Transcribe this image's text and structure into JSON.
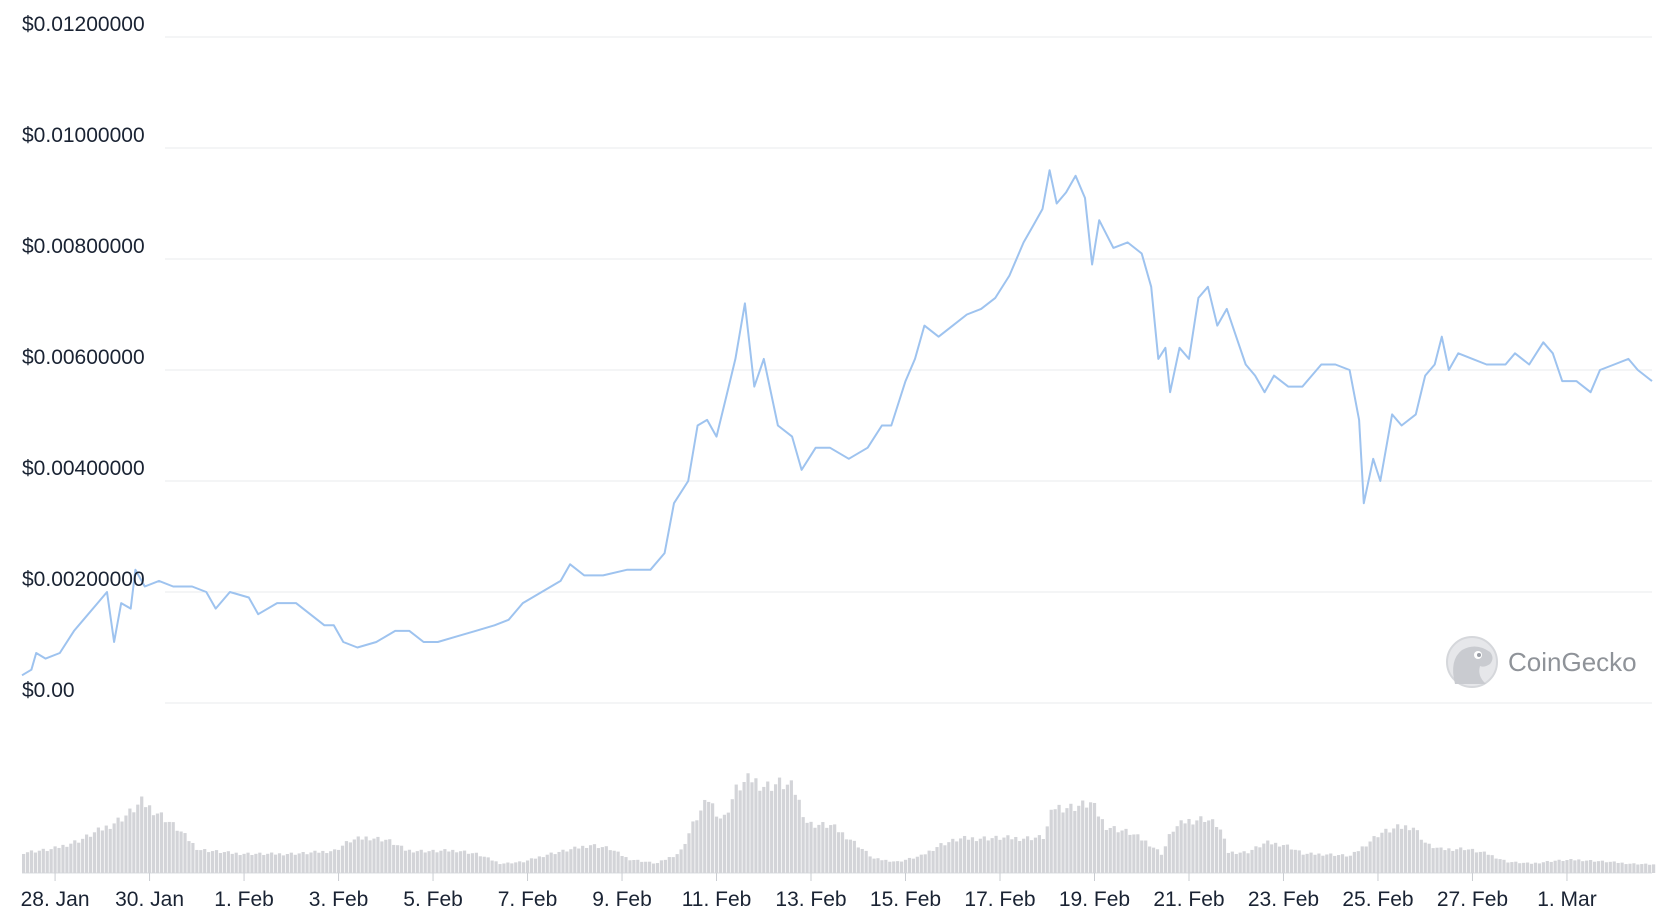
{
  "watermark": {
    "brand": "CoinGecko",
    "icon": "gecko-logo-icon"
  },
  "colors": {
    "line": "#9ec3ef",
    "volume": "#d3d4d8",
    "grid": "#e9ebee",
    "text": "#1a2333"
  },
  "chart_data": {
    "type": "line",
    "title": "",
    "xlabel": "",
    "ylabel": "",
    "ylim": [
      0,
      0.012
    ],
    "grid": true,
    "legend": "none",
    "x_range_days": [
      -0.2,
      34.3
    ],
    "y_ticks": [
      {
        "value": 0,
        "label": "$0.00"
      },
      {
        "value": 0.002,
        "label": "$0.00200000"
      },
      {
        "value": 0.004,
        "label": "$0.00400000"
      },
      {
        "value": 0.006,
        "label": "$0.00600000"
      },
      {
        "value": 0.008,
        "label": "$0.00800000"
      },
      {
        "value": 0.01,
        "label": "$0.01000000"
      },
      {
        "value": 0.012,
        "label": "$0.01200000"
      }
    ],
    "x_ticks": [
      {
        "day": 0.5,
        "label": "28. Jan"
      },
      {
        "day": 2.5,
        "label": "30. Jan"
      },
      {
        "day": 4.5,
        "label": "1. Feb"
      },
      {
        "day": 6.5,
        "label": "3. Feb"
      },
      {
        "day": 8.5,
        "label": "5. Feb"
      },
      {
        "day": 10.5,
        "label": "7. Feb"
      },
      {
        "day": 12.5,
        "label": "9. Feb"
      },
      {
        "day": 14.5,
        "label": "11. Feb"
      },
      {
        "day": 16.5,
        "label": "13. Feb"
      },
      {
        "day": 18.5,
        "label": "15. Feb"
      },
      {
        "day": 20.5,
        "label": "17. Feb"
      },
      {
        "day": 22.5,
        "label": "19. Feb"
      },
      {
        "day": 24.5,
        "label": "21. Feb"
      },
      {
        "day": 26.5,
        "label": "23. Feb"
      },
      {
        "day": 28.5,
        "label": "25. Feb"
      },
      {
        "day": 30.5,
        "label": "27. Feb"
      },
      {
        "day": 32.5,
        "label": "1. Mar"
      }
    ],
    "series": [
      {
        "name": "",
        "points": [
          [
            -0.2,
            0.0005
          ],
          [
            0.0,
            0.0006
          ],
          [
            0.1,
            0.0009
          ],
          [
            0.3,
            0.0008
          ],
          [
            0.6,
            0.0009
          ],
          [
            0.9,
            0.0013
          ],
          [
            1.1,
            0.0015
          ],
          [
            1.4,
            0.0018
          ],
          [
            1.6,
            0.002
          ],
          [
            1.75,
            0.0011
          ],
          [
            1.9,
            0.0018
          ],
          [
            2.1,
            0.0017
          ],
          [
            2.2,
            0.0024
          ],
          [
            2.4,
            0.0021
          ],
          [
            2.7,
            0.0022
          ],
          [
            3.0,
            0.0021
          ],
          [
            3.4,
            0.0021
          ],
          [
            3.7,
            0.002
          ],
          [
            3.9,
            0.0017
          ],
          [
            4.2,
            0.002
          ],
          [
            4.6,
            0.0019
          ],
          [
            4.8,
            0.0016
          ],
          [
            5.2,
            0.0018
          ],
          [
            5.6,
            0.0018
          ],
          [
            5.9,
            0.0016
          ],
          [
            6.2,
            0.0014
          ],
          [
            6.4,
            0.0014
          ],
          [
            6.6,
            0.0011
          ],
          [
            6.9,
            0.001
          ],
          [
            7.3,
            0.0011
          ],
          [
            7.7,
            0.0013
          ],
          [
            8.0,
            0.0013
          ],
          [
            8.3,
            0.0011
          ],
          [
            8.6,
            0.0011
          ],
          [
            9.0,
            0.0012
          ],
          [
            9.4,
            0.0013
          ],
          [
            9.8,
            0.0014
          ],
          [
            10.1,
            0.0015
          ],
          [
            10.4,
            0.0018
          ],
          [
            10.8,
            0.002
          ],
          [
            11.2,
            0.0022
          ],
          [
            11.4,
            0.0025
          ],
          [
            11.7,
            0.0023
          ],
          [
            12.1,
            0.0023
          ],
          [
            12.6,
            0.0024
          ],
          [
            13.1,
            0.0024
          ],
          [
            13.4,
            0.0027
          ],
          [
            13.6,
            0.0036
          ],
          [
            13.9,
            0.004
          ],
          [
            14.1,
            0.005
          ],
          [
            14.3,
            0.0051
          ],
          [
            14.5,
            0.0048
          ],
          [
            14.7,
            0.0055
          ],
          [
            14.9,
            0.0062
          ],
          [
            15.1,
            0.0072
          ],
          [
            15.3,
            0.0057
          ],
          [
            15.5,
            0.0062
          ],
          [
            15.8,
            0.005
          ],
          [
            16.1,
            0.0048
          ],
          [
            16.3,
            0.0042
          ],
          [
            16.6,
            0.0046
          ],
          [
            16.9,
            0.0046
          ],
          [
            17.3,
            0.0044
          ],
          [
            17.7,
            0.0046
          ],
          [
            18.0,
            0.005
          ],
          [
            18.2,
            0.005
          ],
          [
            18.5,
            0.0058
          ],
          [
            18.7,
            0.0062
          ],
          [
            18.9,
            0.0068
          ],
          [
            19.2,
            0.0066
          ],
          [
            19.5,
            0.0068
          ],
          [
            19.8,
            0.007
          ],
          [
            20.1,
            0.0071
          ],
          [
            20.4,
            0.0073
          ],
          [
            20.7,
            0.0077
          ],
          [
            21.0,
            0.0083
          ],
          [
            21.2,
            0.0086
          ],
          [
            21.4,
            0.0089
          ],
          [
            21.55,
            0.0096
          ],
          [
            21.7,
            0.009
          ],
          [
            21.9,
            0.0092
          ],
          [
            22.1,
            0.0095
          ],
          [
            22.3,
            0.0091
          ],
          [
            22.45,
            0.0079
          ],
          [
            22.6,
            0.0087
          ],
          [
            22.9,
            0.0082
          ],
          [
            23.2,
            0.0083
          ],
          [
            23.5,
            0.0081
          ],
          [
            23.7,
            0.0075
          ],
          [
            23.85,
            0.0062
          ],
          [
            24.0,
            0.0064
          ],
          [
            24.1,
            0.0056
          ],
          [
            24.3,
            0.0064
          ],
          [
            24.5,
            0.0062
          ],
          [
            24.7,
            0.0073
          ],
          [
            24.9,
            0.0075
          ],
          [
            25.1,
            0.0068
          ],
          [
            25.3,
            0.0071
          ],
          [
            25.5,
            0.0066
          ],
          [
            25.7,
            0.0061
          ],
          [
            25.9,
            0.0059
          ],
          [
            26.1,
            0.0056
          ],
          [
            26.3,
            0.0059
          ],
          [
            26.6,
            0.0057
          ],
          [
            26.9,
            0.0057
          ],
          [
            27.1,
            0.0059
          ],
          [
            27.3,
            0.0061
          ],
          [
            27.6,
            0.0061
          ],
          [
            27.9,
            0.006
          ],
          [
            28.1,
            0.0051
          ],
          [
            28.2,
            0.0036
          ],
          [
            28.4,
            0.0044
          ],
          [
            28.55,
            0.004
          ],
          [
            28.8,
            0.0052
          ],
          [
            29.0,
            0.005
          ],
          [
            29.3,
            0.0052
          ],
          [
            29.5,
            0.0059
          ],
          [
            29.7,
            0.0061
          ],
          [
            29.85,
            0.0066
          ],
          [
            30.0,
            0.006
          ],
          [
            30.2,
            0.0063
          ],
          [
            30.5,
            0.0062
          ],
          [
            30.8,
            0.0061
          ],
          [
            31.2,
            0.0061
          ],
          [
            31.4,
            0.0063
          ],
          [
            31.7,
            0.0061
          ],
          [
            32.0,
            0.0065
          ],
          [
            32.2,
            0.0063
          ],
          [
            32.4,
            0.0058
          ],
          [
            32.7,
            0.0058
          ],
          [
            33.0,
            0.0056
          ],
          [
            33.2,
            0.006
          ],
          [
            33.5,
            0.0061
          ],
          [
            33.8,
            0.0062
          ],
          [
            34.0,
            0.006
          ],
          [
            34.3,
            0.0058
          ]
        ]
      }
    ],
    "volume": {
      "name": "",
      "max_relative_height": 1.0,
      "points": [
        [
          -0.2,
          0.22
        ],
        [
          0.4,
          0.25
        ],
        [
          1.0,
          0.35
        ],
        [
          1.6,
          0.5
        ],
        [
          2.0,
          0.62
        ],
        [
          2.3,
          0.75
        ],
        [
          2.7,
          0.62
        ],
        [
          3.1,
          0.45
        ],
        [
          3.5,
          0.25
        ],
        [
          4.2,
          0.21
        ],
        [
          5.0,
          0.2
        ],
        [
          5.8,
          0.21
        ],
        [
          6.4,
          0.24
        ],
        [
          6.7,
          0.34
        ],
        [
          7.1,
          0.38
        ],
        [
          7.5,
          0.35
        ],
        [
          7.9,
          0.24
        ],
        [
          8.5,
          0.23
        ],
        [
          9.0,
          0.24
        ],
        [
          9.4,
          0.2
        ],
        [
          9.9,
          0.1
        ],
        [
          10.4,
          0.12
        ],
        [
          10.9,
          0.2
        ],
        [
          11.4,
          0.25
        ],
        [
          11.8,
          0.3
        ],
        [
          12.2,
          0.26
        ],
        [
          12.6,
          0.15
        ],
        [
          13.2,
          0.1
        ],
        [
          13.7,
          0.22
        ],
        [
          14.0,
          0.55
        ],
        [
          14.3,
          0.78
        ],
        [
          14.6,
          0.55
        ],
        [
          14.9,
          0.9
        ],
        [
          15.2,
          1.0
        ],
        [
          15.5,
          0.92
        ],
        [
          15.8,
          0.95
        ],
        [
          16.1,
          0.9
        ],
        [
          16.4,
          0.52
        ],
        [
          16.9,
          0.5
        ],
        [
          17.3,
          0.36
        ],
        [
          17.8,
          0.15
        ],
        [
          18.3,
          0.12
        ],
        [
          18.8,
          0.18
        ],
        [
          19.2,
          0.3
        ],
        [
          19.6,
          0.36
        ],
        [
          20.0,
          0.37
        ],
        [
          20.5,
          0.37
        ],
        [
          21.0,
          0.37
        ],
        [
          21.4,
          0.38
        ],
        [
          21.6,
          0.7
        ],
        [
          22.0,
          0.7
        ],
        [
          22.4,
          0.74
        ],
        [
          22.7,
          0.5
        ],
        [
          23.2,
          0.43
        ],
        [
          23.6,
          0.32
        ],
        [
          23.9,
          0.2
        ],
        [
          24.1,
          0.45
        ],
        [
          24.4,
          0.55
        ],
        [
          24.8,
          0.58
        ],
        [
          25.1,
          0.5
        ],
        [
          25.3,
          0.22
        ],
        [
          25.7,
          0.22
        ],
        [
          26.1,
          0.32
        ],
        [
          26.5,
          0.3
        ],
        [
          26.9,
          0.2
        ],
        [
          27.4,
          0.2
        ],
        [
          27.9,
          0.18
        ],
        [
          28.2,
          0.3
        ],
        [
          28.5,
          0.42
        ],
        [
          28.9,
          0.48
        ],
        [
          29.2,
          0.5
        ],
        [
          29.5,
          0.3
        ],
        [
          29.8,
          0.25
        ],
        [
          30.3,
          0.26
        ],
        [
          30.8,
          0.2
        ],
        [
          31.2,
          0.12
        ],
        [
          31.7,
          0.1
        ],
        [
          32.2,
          0.13
        ],
        [
          32.7,
          0.14
        ],
        [
          33.3,
          0.12
        ],
        [
          33.8,
          0.1
        ],
        [
          34.3,
          0.09
        ]
      ]
    }
  }
}
